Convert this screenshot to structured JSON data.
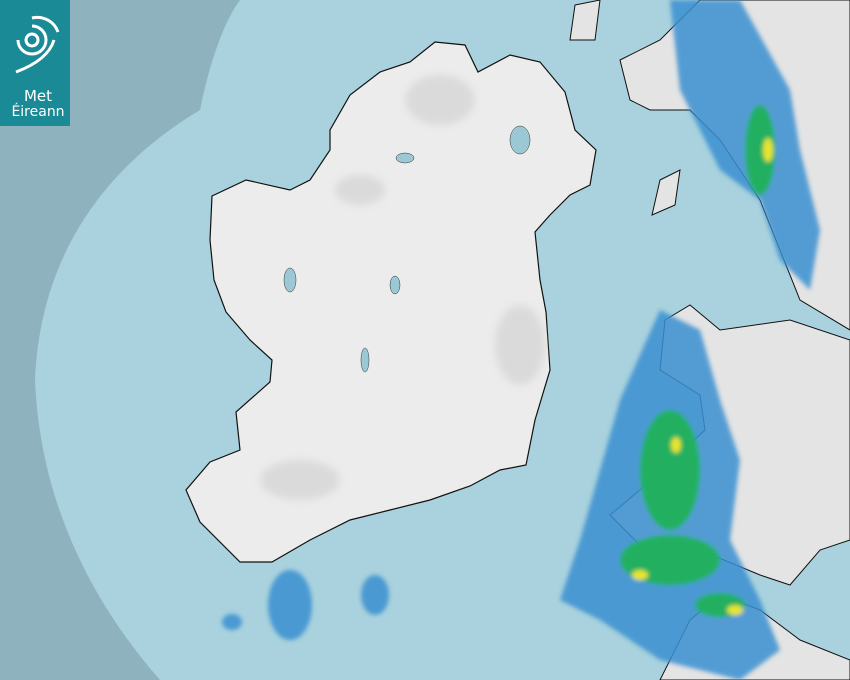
{
  "logo": {
    "line1": "Met",
    "line2": "Éireann",
    "color": "#1b8a97"
  },
  "colors": {
    "outside_coverage": "#8fb2bf",
    "radar_coverage": "#a9d2de",
    "land": "#eeeeee",
    "rain_light": "#3a8fd0",
    "rain_moderate": "#22b060",
    "rain_heavy": "#e6e62a"
  }
}
